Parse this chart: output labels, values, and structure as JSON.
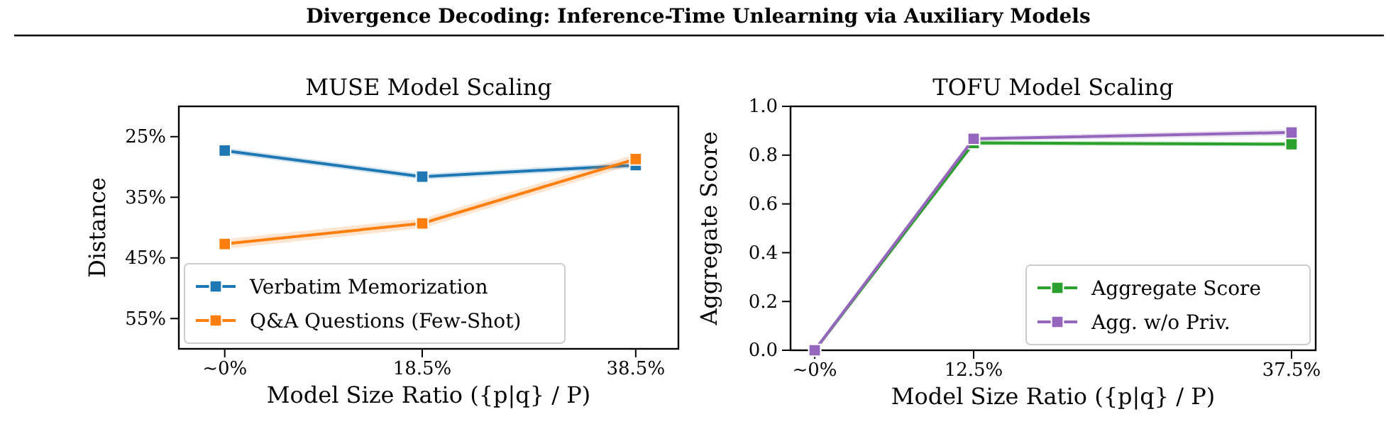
{
  "chart_data": [
    {
      "type": "line",
      "title": "MUSE Model Scaling",
      "xlabel": "Model Size Ratio ({p|q} / P)",
      "ylabel": "Distance",
      "annotations": [
        "Divergence Decoding: Inference-Time Unlearning via Auxiliary Models"
      ],
      "x": [
        0,
        18.5,
        38.5
      ],
      "xlim": [
        -4.3,
        42.5
      ],
      "xticks": [
        {
          "value": 0,
          "label": "~0%"
        },
        {
          "value": 18.5,
          "label": "18.5%"
        },
        {
          "value": 38.5,
          "label": "38.5%"
        }
      ],
      "ylim": [
        60,
        20
      ],
      "yticks": [
        {
          "value": 25,
          "label": "25%"
        },
        {
          "value": 35,
          "label": "35%"
        },
        {
          "value": 45,
          "label": "45%"
        },
        {
          "value": 55,
          "label": "55%"
        }
      ],
      "marker": "square",
      "legend": "bottom left",
      "series": [
        {
          "name": "Verbatim Memorization",
          "color": "#1f77b4",
          "values": [
            27.3,
            31.6,
            29.7
          ],
          "lower": [
            26.8,
            31.1,
            29.2
          ],
          "upper": [
            27.8,
            32.1,
            30.2
          ]
        },
        {
          "name": "Q&A Questions (Few-Shot)",
          "color": "#ff7f0e",
          "values": [
            42.7,
            39.3,
            28.7
          ],
          "lower": [
            41.9,
            38.5,
            27.9
          ],
          "upper": [
            43.5,
            40.1,
            29.5
          ]
        }
      ]
    },
    {
      "type": "line",
      "title": "TOFU Model Scaling",
      "xlabel": "Model Size Ratio ({p|q} / P)",
      "ylabel": "Aggregate Score",
      "x": [
        0,
        12.5,
        37.5
      ],
      "xlim": [
        -1.9,
        39.4
      ],
      "xticks": [
        {
          "value": 0,
          "label": "~0%"
        },
        {
          "value": 12.5,
          "label": "12.5%"
        },
        {
          "value": 37.5,
          "label": "37.5%"
        }
      ],
      "ylim": [
        0,
        1
      ],
      "yticks": [
        {
          "value": 0,
          "label": "0.0"
        },
        {
          "value": 0.2,
          "label": "0.2"
        },
        {
          "value": 0.4,
          "label": "0.4"
        },
        {
          "value": 0.6,
          "label": "0.6"
        },
        {
          "value": 0.8,
          "label": "0.8"
        },
        {
          "value": 1,
          "label": "1.0"
        }
      ],
      "marker": "square",
      "legend": "bottom right",
      "series": [
        {
          "name": "Aggregate Score",
          "color": "#2ca02c",
          "values": [
            0,
            0.85,
            0.845
          ],
          "lower": [
            0,
            0.84,
            0.835
          ],
          "upper": [
            0,
            0.86,
            0.855
          ]
        },
        {
          "name": "Agg. w/o Priv.",
          "color": "#9467bd",
          "values": [
            0,
            0.867,
            0.893
          ],
          "lower": [
            0,
            0.857,
            0.88
          ],
          "upper": [
            0,
            0.877,
            0.906
          ]
        }
      ]
    }
  ]
}
